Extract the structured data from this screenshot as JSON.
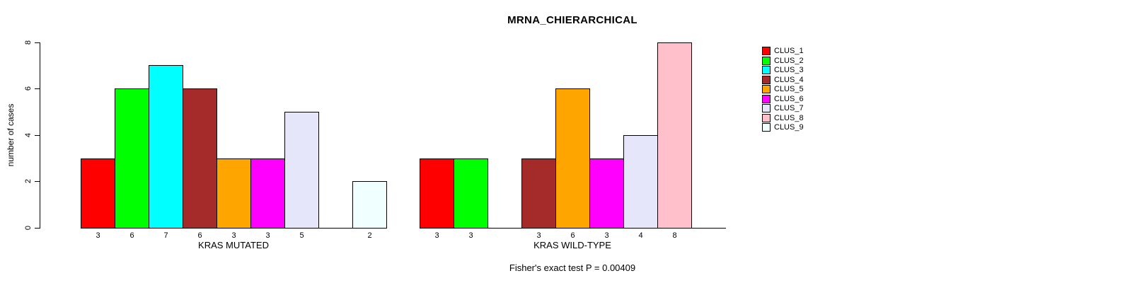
{
  "chart_data": {
    "type": "bar",
    "title": "MRNA_CHIERARCHICAL",
    "ylabel": "number of cases",
    "ylim": [
      0,
      8
    ],
    "yticks": [
      0,
      2,
      4,
      6,
      8
    ],
    "grid": false,
    "legend_position": "right",
    "categories": [
      "CLUS_1",
      "CLUS_2",
      "CLUS_3",
      "CLUS_4",
      "CLUS_5",
      "CLUS_6",
      "CLUS_7",
      "CLUS_8",
      "CLUS_9"
    ],
    "colors": [
      "#FF0000",
      "#00FF00",
      "#00FFFF",
      "#A52A2A",
      "#FFA500",
      "#FF00FF",
      "#E6E6FA",
      "#FFC0CB",
      "#F0FFFF"
    ],
    "groups": [
      {
        "label": "KRAS MUTATED",
        "values": [
          3,
          6,
          7,
          6,
          3,
          3,
          5,
          0,
          2
        ]
      },
      {
        "label": "KRAS WILD-TYPE",
        "values": [
          3,
          3,
          0,
          3,
          6,
          3,
          4,
          8,
          0
        ]
      }
    ],
    "zero_bars_hidden": true,
    "annotation": "Fisher's exact test P = 0.00409",
    "axis_color": "#000000",
    "bar_border_color": "#000000",
    "background_color": "#FFFFFF"
  }
}
